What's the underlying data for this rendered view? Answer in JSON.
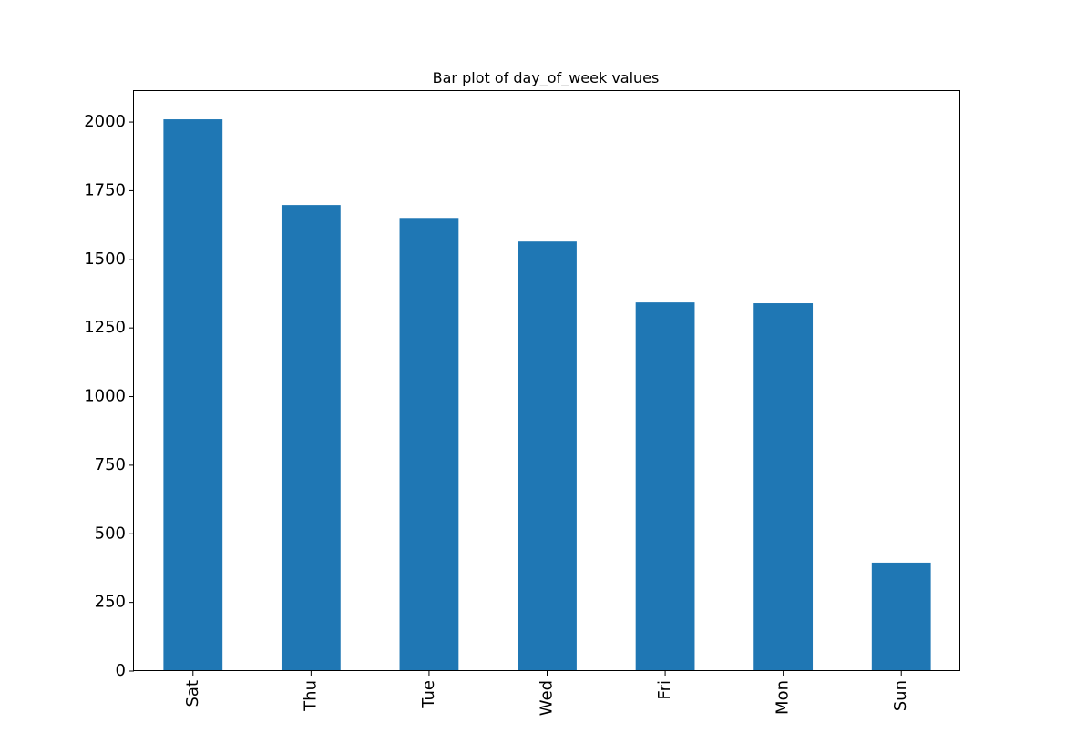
{
  "chart_data": {
    "type": "bar",
    "title": "Bar plot of day_of_week values",
    "xlabel": "",
    "ylabel": "",
    "categories": [
      "Sat",
      "Thu",
      "Tue",
      "Wed",
      "Fri",
      "Mon",
      "Sun"
    ],
    "values": [
      2010,
      1698,
      1651,
      1565,
      1343,
      1340,
      395
    ],
    "ylim": [
      0,
      2113
    ],
    "yticks": [
      0,
      250,
      500,
      750,
      1000,
      1250,
      1500,
      1750,
      2000
    ],
    "bar_color": "#1f77b4",
    "grid": false,
    "legend": "none"
  }
}
